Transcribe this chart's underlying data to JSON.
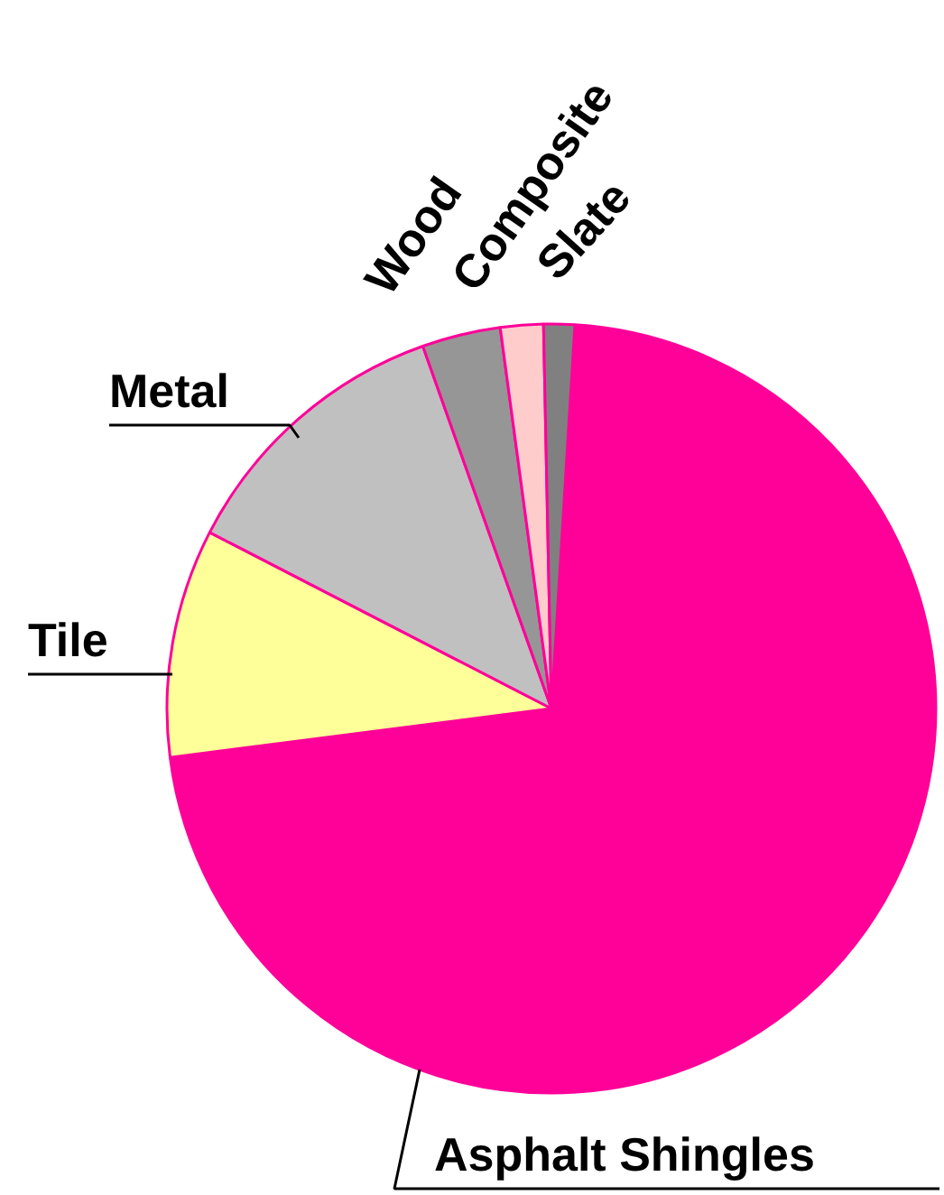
{
  "chart_data": {
    "type": "pie",
    "categories": [
      "Asphalt Shingles",
      "Tile",
      "Metal",
      "Wood",
      "Composite",
      "Slate"
    ],
    "values": [
      72,
      9.6,
      12,
      3.3,
      1.8,
      1.3
    ],
    "colors": [
      "#ff0099",
      "#ffff99",
      "#c0c0c0",
      "#969696",
      "#ffcccc",
      "#808080"
    ]
  }
}
